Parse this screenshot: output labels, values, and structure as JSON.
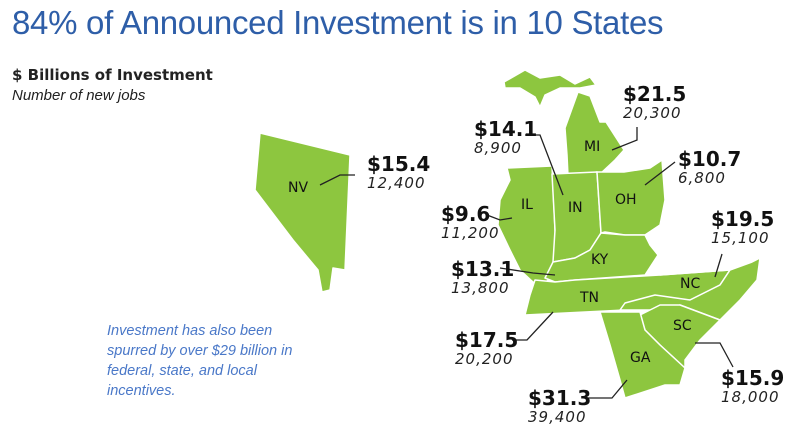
{
  "title": "84% of Announced Investment is in 10 States",
  "legend": {
    "investment": "$ Billions of Investment",
    "jobs": "Number of new jobs"
  },
  "note": "Investment has also been spurred by over $29 billion in federal, state, and local incentives.",
  "colors": {
    "state_fill": "#8dc63f",
    "title": "#2e5ea8",
    "note": "#4a78c8"
  },
  "states": {
    "NV": {
      "code": "NV",
      "investment": "$15.4",
      "jobs": "12,400"
    },
    "MI": {
      "code": "MI",
      "investment": "$21.5",
      "jobs": "20,300"
    },
    "IN": {
      "code": "IN",
      "investment": "$14.1",
      "jobs": "8,900"
    },
    "OH": {
      "code": "OH",
      "investment": "$10.7",
      "jobs": "6,800"
    },
    "IL": {
      "code": "IL",
      "investment": "$9.6",
      "jobs": "11,200"
    },
    "NC": {
      "code": "NC",
      "investment": "$19.5",
      "jobs": "15,100"
    },
    "KY": {
      "code": "KY",
      "investment": "$13.1",
      "jobs": "13,800"
    },
    "TN": {
      "code": "TN",
      "investment": "$17.5",
      "jobs": "20,200"
    },
    "SC": {
      "code": "SC",
      "investment": "$15.9",
      "jobs": "18,000"
    },
    "GA": {
      "code": "GA",
      "investment": "$31.3",
      "jobs": "39,400"
    }
  }
}
